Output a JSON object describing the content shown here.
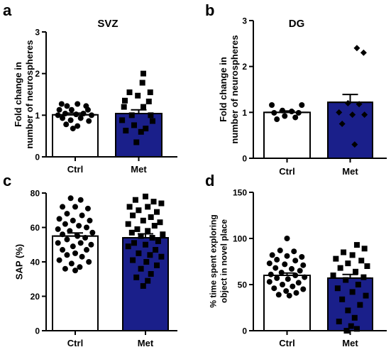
{
  "colors": {
    "ctrl_fill": "#ffffff",
    "met_fill": "#1a1f8a",
    "axis": "#000000",
    "marker": "#000000"
  },
  "chart_data": [
    {
      "panel": "a",
      "type": "bar",
      "title": "SVZ",
      "ylabel": "Fold change in\nnumber of neurospheres",
      "categories": [
        "Ctrl",
        "Met"
      ],
      "values": [
        1.01,
        1.04
      ],
      "sem": [
        0.04,
        0.09
      ],
      "ylim": [
        0,
        3
      ],
      "yticks": [
        "0",
        "1",
        "2",
        "3"
      ],
      "points": {
        "Ctrl": [
          {
            "x": -0.3,
            "y": 1.27
          },
          {
            "x": 0.05,
            "y": 1.27
          },
          {
            "x": -0.18,
            "y": 1.22
          },
          {
            "x": 0.24,
            "y": 1.22
          },
          {
            "x": -0.35,
            "y": 1.13
          },
          {
            "x": -0.08,
            "y": 1.13
          },
          {
            "x": 0.28,
            "y": 1.13
          },
          {
            "x": -0.22,
            "y": 1.04
          },
          {
            "x": 0.02,
            "y": 1.02
          },
          {
            "x": 0.18,
            "y": 1.04
          },
          {
            "x": -0.38,
            "y": 1.0
          },
          {
            "x": 0.36,
            "y": 1.0
          },
          {
            "x": -0.28,
            "y": 0.93
          },
          {
            "x": 0.12,
            "y": 0.93
          },
          {
            "x": -0.1,
            "y": 0.88
          },
          {
            "x": 0.3,
            "y": 0.86
          },
          {
            "x": -0.2,
            "y": 0.78
          },
          {
            "x": 0.05,
            "y": 0.74
          },
          {
            "x": -0.05,
            "y": 0.68
          }
        ],
        "Met": [
          {
            "x": 0.1,
            "y": 2.0
          },
          {
            "x": 0.08,
            "y": 1.78
          },
          {
            "x": -0.2,
            "y": 1.55
          },
          {
            "x": 0.25,
            "y": 1.55
          },
          {
            "x": -0.02,
            "y": 1.47
          },
          {
            "x": -0.3,
            "y": 1.35
          },
          {
            "x": 0.22,
            "y": 1.33
          },
          {
            "x": -0.32,
            "y": 1.2
          },
          {
            "x": 0.1,
            "y": 1.2
          },
          {
            "x": -0.15,
            "y": 1.0
          },
          {
            "x": 0.26,
            "y": 1.0
          },
          {
            "x": -0.36,
            "y": 0.88
          },
          {
            "x": 0.3,
            "y": 0.86
          },
          {
            "x": -0.1,
            "y": 0.76
          },
          {
            "x": 0.15,
            "y": 0.68
          },
          {
            "x": -0.28,
            "y": 0.63
          },
          {
            "x": 0.05,
            "y": 0.6
          },
          {
            "x": -0.05,
            "y": 0.35
          }
        ]
      },
      "markers": {
        "Ctrl": "circle",
        "Met": "square"
      }
    },
    {
      "panel": "b",
      "type": "bar",
      "title": "DG",
      "ylabel": "Fold change in\nnumber of neurospheres",
      "categories": [
        "Ctrl",
        "Met"
      ],
      "values": [
        1.0,
        1.22
      ],
      "sem": [
        0.03,
        0.17
      ],
      "ylim": [
        0,
        3
      ],
      "yticks": [
        "0",
        "1",
        "2",
        "3"
      ],
      "points": {
        "Ctrl": [
          {
            "x": -0.33,
            "y": 1.16
          },
          {
            "x": 0.32,
            "y": 1.16
          },
          {
            "x": -0.1,
            "y": 1.04
          },
          {
            "x": 0.1,
            "y": 1.02
          },
          {
            "x": -0.28,
            "y": 0.99
          },
          {
            "x": 0.25,
            "y": 0.99
          },
          {
            "x": -0.05,
            "y": 0.92
          },
          {
            "x": 0.18,
            "y": 0.89
          },
          {
            "x": -0.22,
            "y": 0.85
          }
        ],
        "Met": [
          {
            "x": 0.15,
            "y": 2.4
          },
          {
            "x": 0.3,
            "y": 2.3
          },
          {
            "x": -0.05,
            "y": 1.2
          },
          {
            "x": 0.2,
            "y": 1.18
          },
          {
            "x": -0.25,
            "y": 1.0
          },
          {
            "x": 0.05,
            "y": 0.95
          },
          {
            "x": 0.32,
            "y": 0.95
          },
          {
            "x": -0.18,
            "y": 0.75
          },
          {
            "x": 0.1,
            "y": 0.3
          }
        ]
      },
      "markers": {
        "Ctrl": "circle",
        "Met": "diamond"
      }
    },
    {
      "panel": "c",
      "type": "bar",
      "title": "",
      "ylabel": "SAP (%)",
      "categories": [
        "Ctrl",
        "Met"
      ],
      "values": [
        55,
        54
      ],
      "sem": [
        1.8,
        2.3
      ],
      "ylim": [
        0,
        80
      ],
      "yticks": [
        "0",
        "20",
        "40",
        "60",
        "80"
      ],
      "points": {
        "Ctrl": [
          {
            "x": -0.1,
            "y": 77
          },
          {
            "x": 0.12,
            "y": 76
          },
          {
            "x": -0.28,
            "y": 72
          },
          {
            "x": 0.0,
            "y": 72
          },
          {
            "x": 0.28,
            "y": 71
          },
          {
            "x": -0.18,
            "y": 68
          },
          {
            "x": 0.15,
            "y": 67
          },
          {
            "x": -0.35,
            "y": 65
          },
          {
            "x": -0.05,
            "y": 64
          },
          {
            "x": 0.32,
            "y": 64
          },
          {
            "x": -0.22,
            "y": 62
          },
          {
            "x": 0.08,
            "y": 61
          },
          {
            "x": 0.25,
            "y": 60
          },
          {
            "x": -0.38,
            "y": 59
          },
          {
            "x": -0.12,
            "y": 58
          },
          {
            "x": 0.38,
            "y": 57
          },
          {
            "x": -0.28,
            "y": 56
          },
          {
            "x": 0.05,
            "y": 55
          },
          {
            "x": 0.22,
            "y": 54
          },
          {
            "x": -0.18,
            "y": 53
          },
          {
            "x": -0.38,
            "y": 51
          },
          {
            "x": 0.12,
            "y": 51
          },
          {
            "x": 0.35,
            "y": 50
          },
          {
            "x": -0.05,
            "y": 49
          },
          {
            "x": -0.28,
            "y": 47
          },
          {
            "x": 0.25,
            "y": 47
          },
          {
            "x": 0.0,
            "y": 45
          },
          {
            "x": -0.18,
            "y": 44
          },
          {
            "x": 0.15,
            "y": 43
          },
          {
            "x": -0.35,
            "y": 41
          },
          {
            "x": 0.3,
            "y": 40
          },
          {
            "x": -0.08,
            "y": 39
          },
          {
            "x": 0.1,
            "y": 37
          },
          {
            "x": -0.22,
            "y": 36
          },
          {
            "x": 0.0,
            "y": 35
          }
        ],
        "Met": [
          {
            "x": 0.0,
            "y": 78
          },
          {
            "x": -0.22,
            "y": 76
          },
          {
            "x": 0.18,
            "y": 75
          },
          {
            "x": 0.35,
            "y": 74
          },
          {
            "x": -0.35,
            "y": 72
          },
          {
            "x": 0.05,
            "y": 72
          },
          {
            "x": -0.15,
            "y": 70
          },
          {
            "x": 0.25,
            "y": 69
          },
          {
            "x": -0.28,
            "y": 67
          },
          {
            "x": 0.12,
            "y": 66
          },
          {
            "x": -0.05,
            "y": 64
          },
          {
            "x": 0.32,
            "y": 63
          },
          {
            "x": -0.38,
            "y": 62
          },
          {
            "x": 0.2,
            "y": 61
          },
          {
            "x": -0.18,
            "y": 59
          },
          {
            "x": 0.05,
            "y": 58
          },
          {
            "x": -0.3,
            "y": 57
          },
          {
            "x": 0.38,
            "y": 56
          },
          {
            "x": -0.1,
            "y": 55
          },
          {
            "x": 0.15,
            "y": 54
          },
          {
            "x": 0.28,
            "y": 52
          },
          {
            "x": -0.25,
            "y": 51
          },
          {
            "x": 0.0,
            "y": 50
          },
          {
            "x": -0.38,
            "y": 49
          },
          {
            "x": 0.22,
            "y": 47
          },
          {
            "x": -0.15,
            "y": 45
          },
          {
            "x": 0.1,
            "y": 44
          },
          {
            "x": 0.35,
            "y": 43
          },
          {
            "x": -0.28,
            "y": 41
          },
          {
            "x": 0.02,
            "y": 40
          },
          {
            "x": 0.25,
            "y": 38
          },
          {
            "x": -0.1,
            "y": 36
          },
          {
            "x": 0.12,
            "y": 33
          },
          {
            "x": -0.2,
            "y": 31
          },
          {
            "x": 0.05,
            "y": 29
          },
          {
            "x": -0.05,
            "y": 26
          }
        ]
      },
      "markers": {
        "Ctrl": "circle",
        "Met": "square"
      }
    },
    {
      "panel": "d",
      "type": "bar",
      "title": "",
      "ylabel": "% time spent exploring\nobject in novel place",
      "categories": [
        "Ctrl",
        "Met"
      ],
      "values": [
        60,
        57
      ],
      "sem": [
        2.5,
        4.0
      ],
      "ylim": [
        0,
        150
      ],
      "yticks": [
        "0",
        "50",
        "100",
        "150"
      ],
      "points": {
        "Ctrl": [
          {
            "x": 0.0,
            "y": 100
          },
          {
            "x": -0.15,
            "y": 87
          },
          {
            "x": 0.15,
            "y": 86
          },
          {
            "x": -0.32,
            "y": 82
          },
          {
            "x": 0.0,
            "y": 81
          },
          {
            "x": 0.32,
            "y": 80
          },
          {
            "x": -0.22,
            "y": 77
          },
          {
            "x": 0.18,
            "y": 76
          },
          {
            "x": -0.38,
            "y": 73
          },
          {
            "x": -0.05,
            "y": 72
          },
          {
            "x": 0.35,
            "y": 71
          },
          {
            "x": -0.25,
            "y": 68
          },
          {
            "x": 0.1,
            "y": 67
          },
          {
            "x": 0.28,
            "y": 65
          },
          {
            "x": -0.12,
            "y": 63
          },
          {
            "x": -0.35,
            "y": 61
          },
          {
            "x": 0.18,
            "y": 60
          },
          {
            "x": 0.38,
            "y": 58
          },
          {
            "x": -0.22,
            "y": 57
          },
          {
            "x": 0.02,
            "y": 56
          },
          {
            "x": -0.38,
            "y": 53
          },
          {
            "x": 0.25,
            "y": 52
          },
          {
            "x": -0.1,
            "y": 50
          },
          {
            "x": 0.12,
            "y": 48
          },
          {
            "x": -0.28,
            "y": 46
          },
          {
            "x": 0.35,
            "y": 45
          },
          {
            "x": -0.02,
            "y": 43
          },
          {
            "x": 0.2,
            "y": 41
          },
          {
            "x": -0.18,
            "y": 39
          },
          {
            "x": 0.05,
            "y": 38
          }
        ],
        "Met": [
          {
            "x": 0.15,
            "y": 93
          },
          {
            "x": 0.32,
            "y": 89
          },
          {
            "x": -0.15,
            "y": 85
          },
          {
            "x": 0.05,
            "y": 82
          },
          {
            "x": -0.32,
            "y": 78
          },
          {
            "x": 0.25,
            "y": 76
          },
          {
            "x": -0.05,
            "y": 73
          },
          {
            "x": 0.38,
            "y": 70
          },
          {
            "x": -0.22,
            "y": 68
          },
          {
            "x": 0.12,
            "y": 64
          },
          {
            "x": -0.38,
            "y": 60
          },
          {
            "x": 0.3,
            "y": 58
          },
          {
            "x": -0.1,
            "y": 55
          },
          {
            "x": 0.18,
            "y": 50
          },
          {
            "x": -0.28,
            "y": 46
          },
          {
            "x": 0.05,
            "y": 42
          },
          {
            "x": 0.35,
            "y": 38
          },
          {
            "x": -0.18,
            "y": 34
          },
          {
            "x": 0.22,
            "y": 28
          },
          {
            "x": -0.05,
            "y": 22
          },
          {
            "x": 0.1,
            "y": 14
          },
          {
            "x": -0.25,
            "y": 10
          },
          {
            "x": 0.02,
            "y": 5
          },
          {
            "x": 0.15,
            "y": 2
          },
          {
            "x": -0.08,
            "y": 0
          }
        ]
      },
      "markers": {
        "Ctrl": "circle",
        "Met": "square"
      }
    }
  ],
  "panel_letters": [
    "a",
    "b",
    "c",
    "d"
  ]
}
